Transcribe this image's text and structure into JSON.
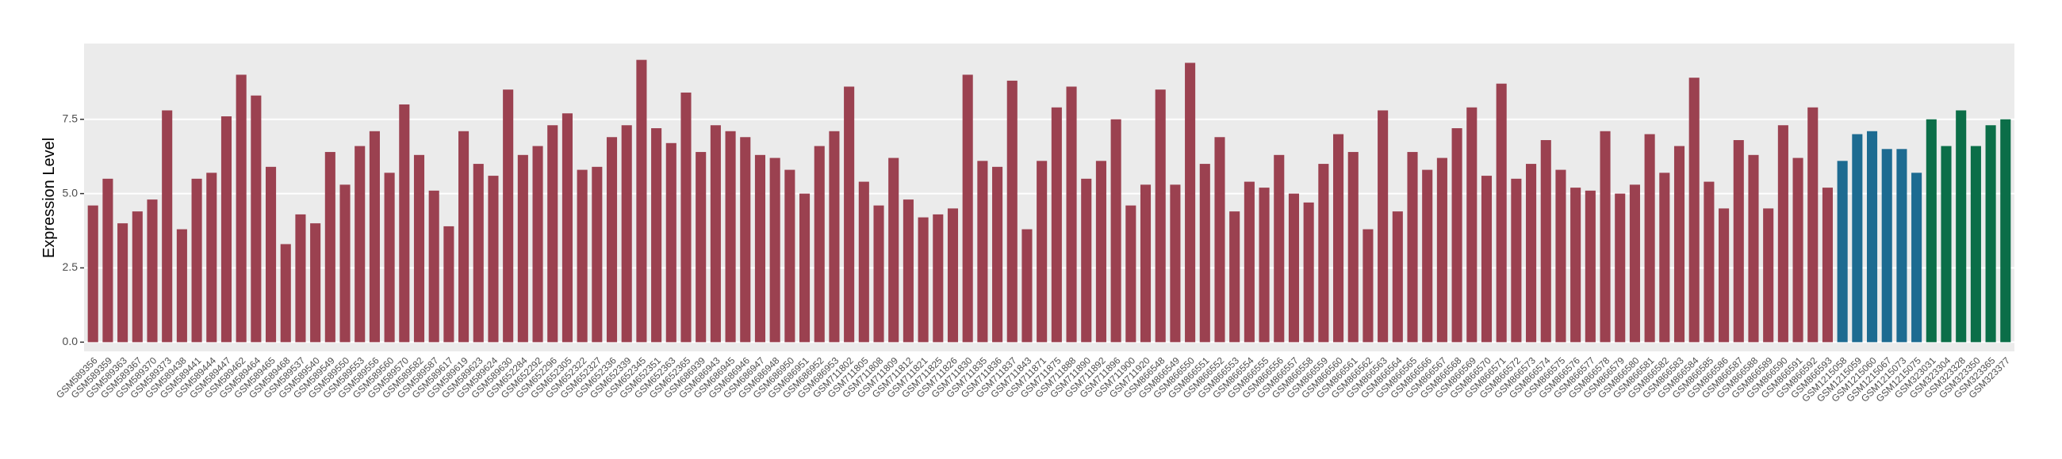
{
  "chart_data": {
    "type": "bar",
    "ylabel": "Expression Level",
    "ylim": [
      -0.31,
      10.05
    ],
    "yticks": [
      {
        "value": 0,
        "label": "0.0"
      },
      {
        "value": 2.5,
        "label": "2.5"
      },
      {
        "value": 5,
        "label": "5.0"
      },
      {
        "value": 7.5,
        "label": "7.5"
      }
    ],
    "grid": true,
    "categories": [
      "GSM589356",
      "GSM589359",
      "GSM589363",
      "GSM589367",
      "GSM589370",
      "GSM589373",
      "GSM589438",
      "GSM589441",
      "GSM589444",
      "GSM589447",
      "GSM589462",
      "GSM589464",
      "GSM589465",
      "GSM589468",
      "GSM589537",
      "GSM589540",
      "GSM589549",
      "GSM589550",
      "GSM589553",
      "GSM589556",
      "GSM589560",
      "GSM589570",
      "GSM589582",
      "GSM589587",
      "GSM589617",
      "GSM589619",
      "GSM589623",
      "GSM589624",
      "GSM589630",
      "GSM652284",
      "GSM652292",
      "GSM652296",
      "GSM652305",
      "GSM652322",
      "GSM652327",
      "GSM652336",
      "GSM652339",
      "GSM652345",
      "GSM652351",
      "GSM652363",
      "GSM652365",
      "GSM686939",
      "GSM686943",
      "GSM686945",
      "GSM686946",
      "GSM686947",
      "GSM686948",
      "GSM686950",
      "GSM686951",
      "GSM686952",
      "GSM686953",
      "GSM711802",
      "GSM711805",
      "GSM711808",
      "GSM711809",
      "GSM711812",
      "GSM711821",
      "GSM711825",
      "GSM711826",
      "GSM711830",
      "GSM711835",
      "GSM711836",
      "GSM711837",
      "GSM711843",
      "GSM711871",
      "GSM711875",
      "GSM711888",
      "GSM711890",
      "GSM711892",
      "GSM711896",
      "GSM711900",
      "GSM711920",
      "GSM866548",
      "GSM866549",
      "GSM866550",
      "GSM866551",
      "GSM866552",
      "GSM866553",
      "GSM866554",
      "GSM866555",
      "GSM866556",
      "GSM866557",
      "GSM866558",
      "GSM866559",
      "GSM866560",
      "GSM866561",
      "GSM866562",
      "GSM866563",
      "GSM866564",
      "GSM866565",
      "GSM866566",
      "GSM866567",
      "GSM866568",
      "GSM866569",
      "GSM866570",
      "GSM866571",
      "GSM866572",
      "GSM866573",
      "GSM866574",
      "GSM866575",
      "GSM866576",
      "GSM866577",
      "GSM866578",
      "GSM866579",
      "GSM866580",
      "GSM866581",
      "GSM866582",
      "GSM866583",
      "GSM866584",
      "GSM866585",
      "GSM866586",
      "GSM866587",
      "GSM866588",
      "GSM866589",
      "GSM866590",
      "GSM866591",
      "GSM866592",
      "GSM866593",
      "GSM1215058",
      "GSM1215059",
      "GSM1215060",
      "GSM1215067",
      "GSM1215073",
      "GSM1215075",
      "GSM323031",
      "GSM323304",
      "GSM323328",
      "GSM323350",
      "GSM323365",
      "GSM323377"
    ],
    "values": [
      4.6,
      5.5,
      4.0,
      4.4,
      4.8,
      7.8,
      3.8,
      5.5,
      5.7,
      7.6,
      9.0,
      8.3,
      5.9,
      3.3,
      4.3,
      4.0,
      6.4,
      5.3,
      6.6,
      7.1,
      5.7,
      8.0,
      6.3,
      5.1,
      3.9,
      7.1,
      6.0,
      5.6,
      8.5,
      6.3,
      6.6,
      7.3,
      7.7,
      5.8,
      5.9,
      6.9,
      7.3,
      9.5,
      7.2,
      6.7,
      8.4,
      6.4,
      7.3,
      7.1,
      6.9,
      6.3,
      6.2,
      5.8,
      5.0,
      6.6,
      7.1,
      8.6,
      5.4,
      4.6,
      6.2,
      4.8,
      4.2,
      4.3,
      4.5,
      9.0,
      6.1,
      5.9,
      8.8,
      3.8,
      6.1,
      7.9,
      8.6,
      5.5,
      6.1,
      7.5,
      4.6,
      5.3,
      8.5,
      5.3,
      9.4,
      6.0,
      6.9,
      4.4,
      5.4,
      5.2,
      6.3,
      5.0,
      4.7,
      6.0,
      7.0,
      6.4,
      3.8,
      7.8,
      4.4,
      6.4,
      5.8,
      6.2,
      7.2,
      7.9,
      5.6,
      8.7,
      5.5,
      6.0,
      6.8,
      5.8,
      5.2,
      5.1,
      7.1,
      5.0,
      5.3,
      7.0,
      5.7,
      6.6,
      8.9,
      5.4,
      4.5,
      6.8,
      6.3,
      4.5,
      7.3,
      6.2,
      7.9,
      5.2,
      6.1,
      7.0,
      7.1,
      6.5,
      6.5,
      5.7,
      7.5,
      6.6,
      7.8,
      6.6,
      7.3,
      7.5
    ],
    "colors": [
      "#9b4150",
      "#9b4150",
      "#9b4150",
      "#9b4150",
      "#9b4150",
      "#9b4150",
      "#9b4150",
      "#9b4150",
      "#9b4150",
      "#9b4150",
      "#9b4150",
      "#9b4150",
      "#9b4150",
      "#9b4150",
      "#9b4150",
      "#9b4150",
      "#9b4150",
      "#9b4150",
      "#9b4150",
      "#9b4150",
      "#9b4150",
      "#9b4150",
      "#9b4150",
      "#9b4150",
      "#9b4150",
      "#9b4150",
      "#9b4150",
      "#9b4150",
      "#9b4150",
      "#9b4150",
      "#9b4150",
      "#9b4150",
      "#9b4150",
      "#9b4150",
      "#9b4150",
      "#9b4150",
      "#9b4150",
      "#9b4150",
      "#9b4150",
      "#9b4150",
      "#9b4150",
      "#9b4150",
      "#9b4150",
      "#9b4150",
      "#9b4150",
      "#9b4150",
      "#9b4150",
      "#9b4150",
      "#9b4150",
      "#9b4150",
      "#9b4150",
      "#9b4150",
      "#9b4150",
      "#9b4150",
      "#9b4150",
      "#9b4150",
      "#9b4150",
      "#9b4150",
      "#9b4150",
      "#9b4150",
      "#9b4150",
      "#9b4150",
      "#9b4150",
      "#9b4150",
      "#9b4150",
      "#9b4150",
      "#9b4150",
      "#9b4150",
      "#9b4150",
      "#9b4150",
      "#9b4150",
      "#9b4150",
      "#9b4150",
      "#9b4150",
      "#9b4150",
      "#9b4150",
      "#9b4150",
      "#9b4150",
      "#9b4150",
      "#9b4150",
      "#9b4150",
      "#9b4150",
      "#9b4150",
      "#9b4150",
      "#9b4150",
      "#9b4150",
      "#9b4150",
      "#9b4150",
      "#9b4150",
      "#9b4150",
      "#9b4150",
      "#9b4150",
      "#9b4150",
      "#9b4150",
      "#9b4150",
      "#9b4150",
      "#9b4150",
      "#9b4150",
      "#9b4150",
      "#9b4150",
      "#9b4150",
      "#9b4150",
      "#9b4150",
      "#9b4150",
      "#9b4150",
      "#9b4150",
      "#9b4150",
      "#9b4150",
      "#9b4150",
      "#9b4150",
      "#9b4150",
      "#9b4150",
      "#9b4150",
      "#9b4150",
      "#9b4150",
      "#9b4150",
      "#9b4150",
      "#9b4150",
      "#1d6b91",
      "#1d6b91",
      "#1d6b91",
      "#1d6b91",
      "#1d6b91",
      "#1d6b91",
      "#0b6e48",
      "#0b6e48",
      "#0b6e48",
      "#0b6e48",
      "#0b6e48",
      "#0b6e48"
    ]
  }
}
